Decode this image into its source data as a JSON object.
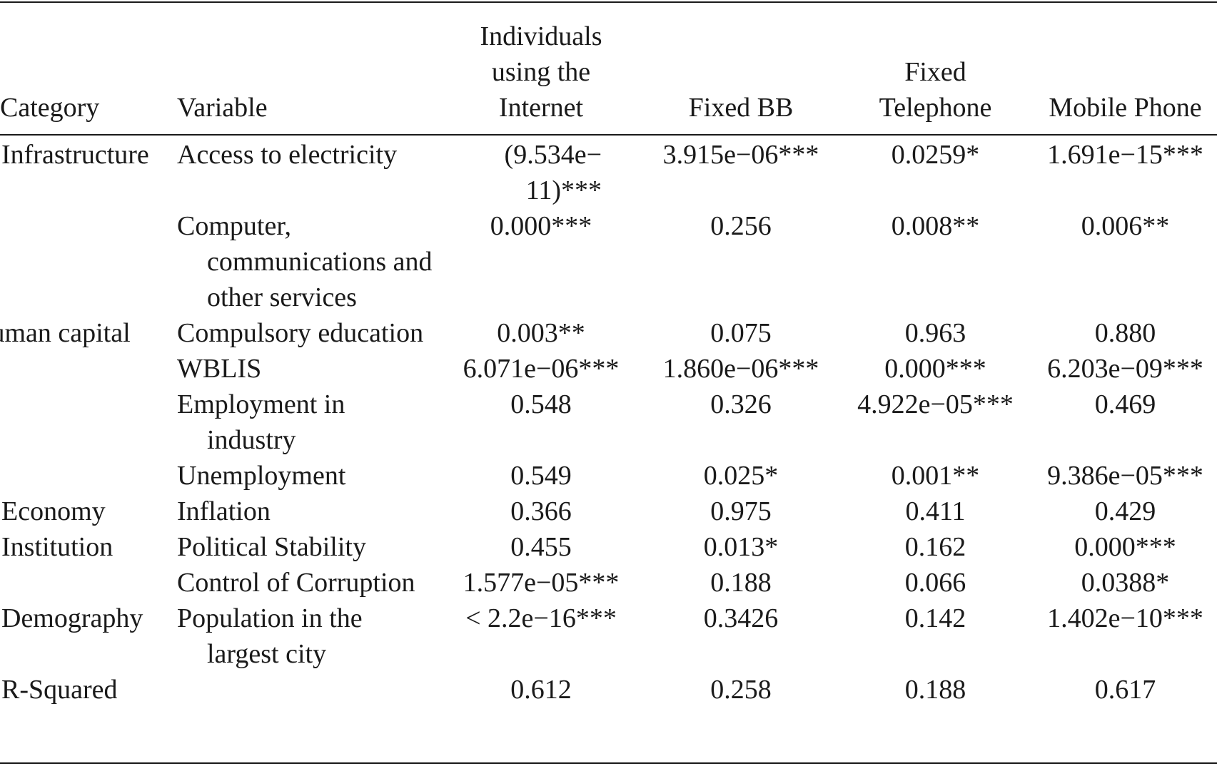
{
  "table": {
    "headers": {
      "category": "Category",
      "variable": "Variable",
      "col1": [
        "Individuals",
        "using the",
        "Internet"
      ],
      "col2": "Fixed BB",
      "col3": [
        "Fixed",
        "Telephone"
      ],
      "col4": "Mobile Phone"
    },
    "rows": [
      {
        "category": "Infrastructure",
        "variable": "Access to electricity",
        "v1": "(9.534e−11)***",
        "v1a": "(9.534e−",
        "v1b": "11)***",
        "v2": "3.915e−06***",
        "v3": "0.0259*",
        "v4": "1.691e−15***"
      },
      {
        "category": "",
        "variable": "Computer, communications and other services",
        "v1": "0.000***",
        "v2": "0.256",
        "v3": "0.008**",
        "v4": "0.006**"
      },
      {
        "category": "Human capital",
        "variable": "Compulsory education",
        "v1": "0.003**",
        "v2": "0.075",
        "v3": "0.963",
        "v4": "0.880"
      },
      {
        "category": "",
        "variable": "WBLIS",
        "v1": "6.071e−06***",
        "v2": "1.860e−06***",
        "v3": "0.000***",
        "v4": "6.203e−09***"
      },
      {
        "category": "",
        "variable": "Employment in industry",
        "v1": "0.548",
        "v2": "0.326",
        "v3": "4.922e−05***",
        "v4": "0.469"
      },
      {
        "category": "",
        "variable": "Unemployment",
        "v1": "0.549",
        "v2": "0.025*",
        "v3": "0.001**",
        "v4": "9.386e−05***"
      },
      {
        "category": "Economy",
        "variable": "Inflation",
        "v1": "0.366",
        "v2": "0.975",
        "v3": "0.411",
        "v4": "0.429"
      },
      {
        "category": "Institution",
        "variable": "Political Stability",
        "v1": "0.455",
        "v2": "0.013*",
        "v3": "0.162",
        "v4": "0.000***"
      },
      {
        "category": "",
        "variable": "Control of Corruption",
        "v1": "1.577e−05***",
        "v2": "0.188",
        "v3": "0.066",
        "v4": "0.0388*"
      },
      {
        "category": "Demography",
        "variable": "Population in the largest city",
        "v1": "< 2.2e−16***",
        "v2": "0.3426",
        "v3": "0.142",
        "v4": "1.402e−10***"
      },
      {
        "category": "R-Squared",
        "variable": "",
        "v1": "0.612",
        "v2": "0.258",
        "v3": "0.188",
        "v4": "0.617"
      }
    ]
  }
}
